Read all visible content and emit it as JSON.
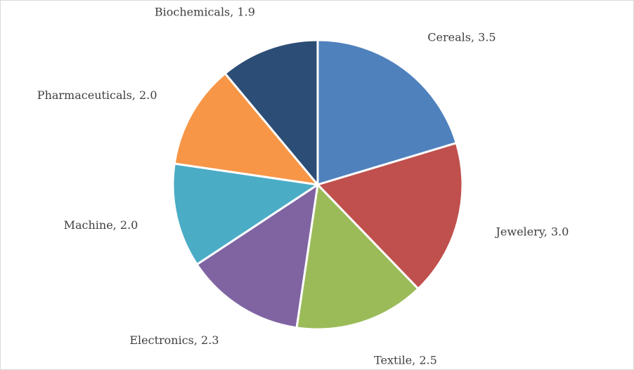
{
  "chart_data": {
    "type": "pie",
    "title": "",
    "start_angle_deg": 0,
    "direction": "clockwise",
    "categories": [
      "Cereals",
      "Jewelery",
      "Textile",
      "Electronics",
      "Machine",
      "Pharmaceuticals",
      "Biochemicals"
    ],
    "values": [
      3.5,
      3.0,
      2.5,
      2.3,
      2.0,
      2.0,
      1.9
    ],
    "labels": [
      "Cereals, 3.5",
      "Jewelery, 3.0",
      "Textile, 2.5",
      "Electronics, 2.3",
      "Machine, 2.0",
      "Pharmaceuticals, 2.0",
      "Biochemicals, 1.9"
    ],
    "colors": [
      "#4f81bd",
      "#c0504d",
      "#9bbb59",
      "#8064a2",
      "#4bacc6",
      "#f79646",
      "#2c4d75"
    ],
    "legend": "none",
    "data_labels": "outside"
  }
}
